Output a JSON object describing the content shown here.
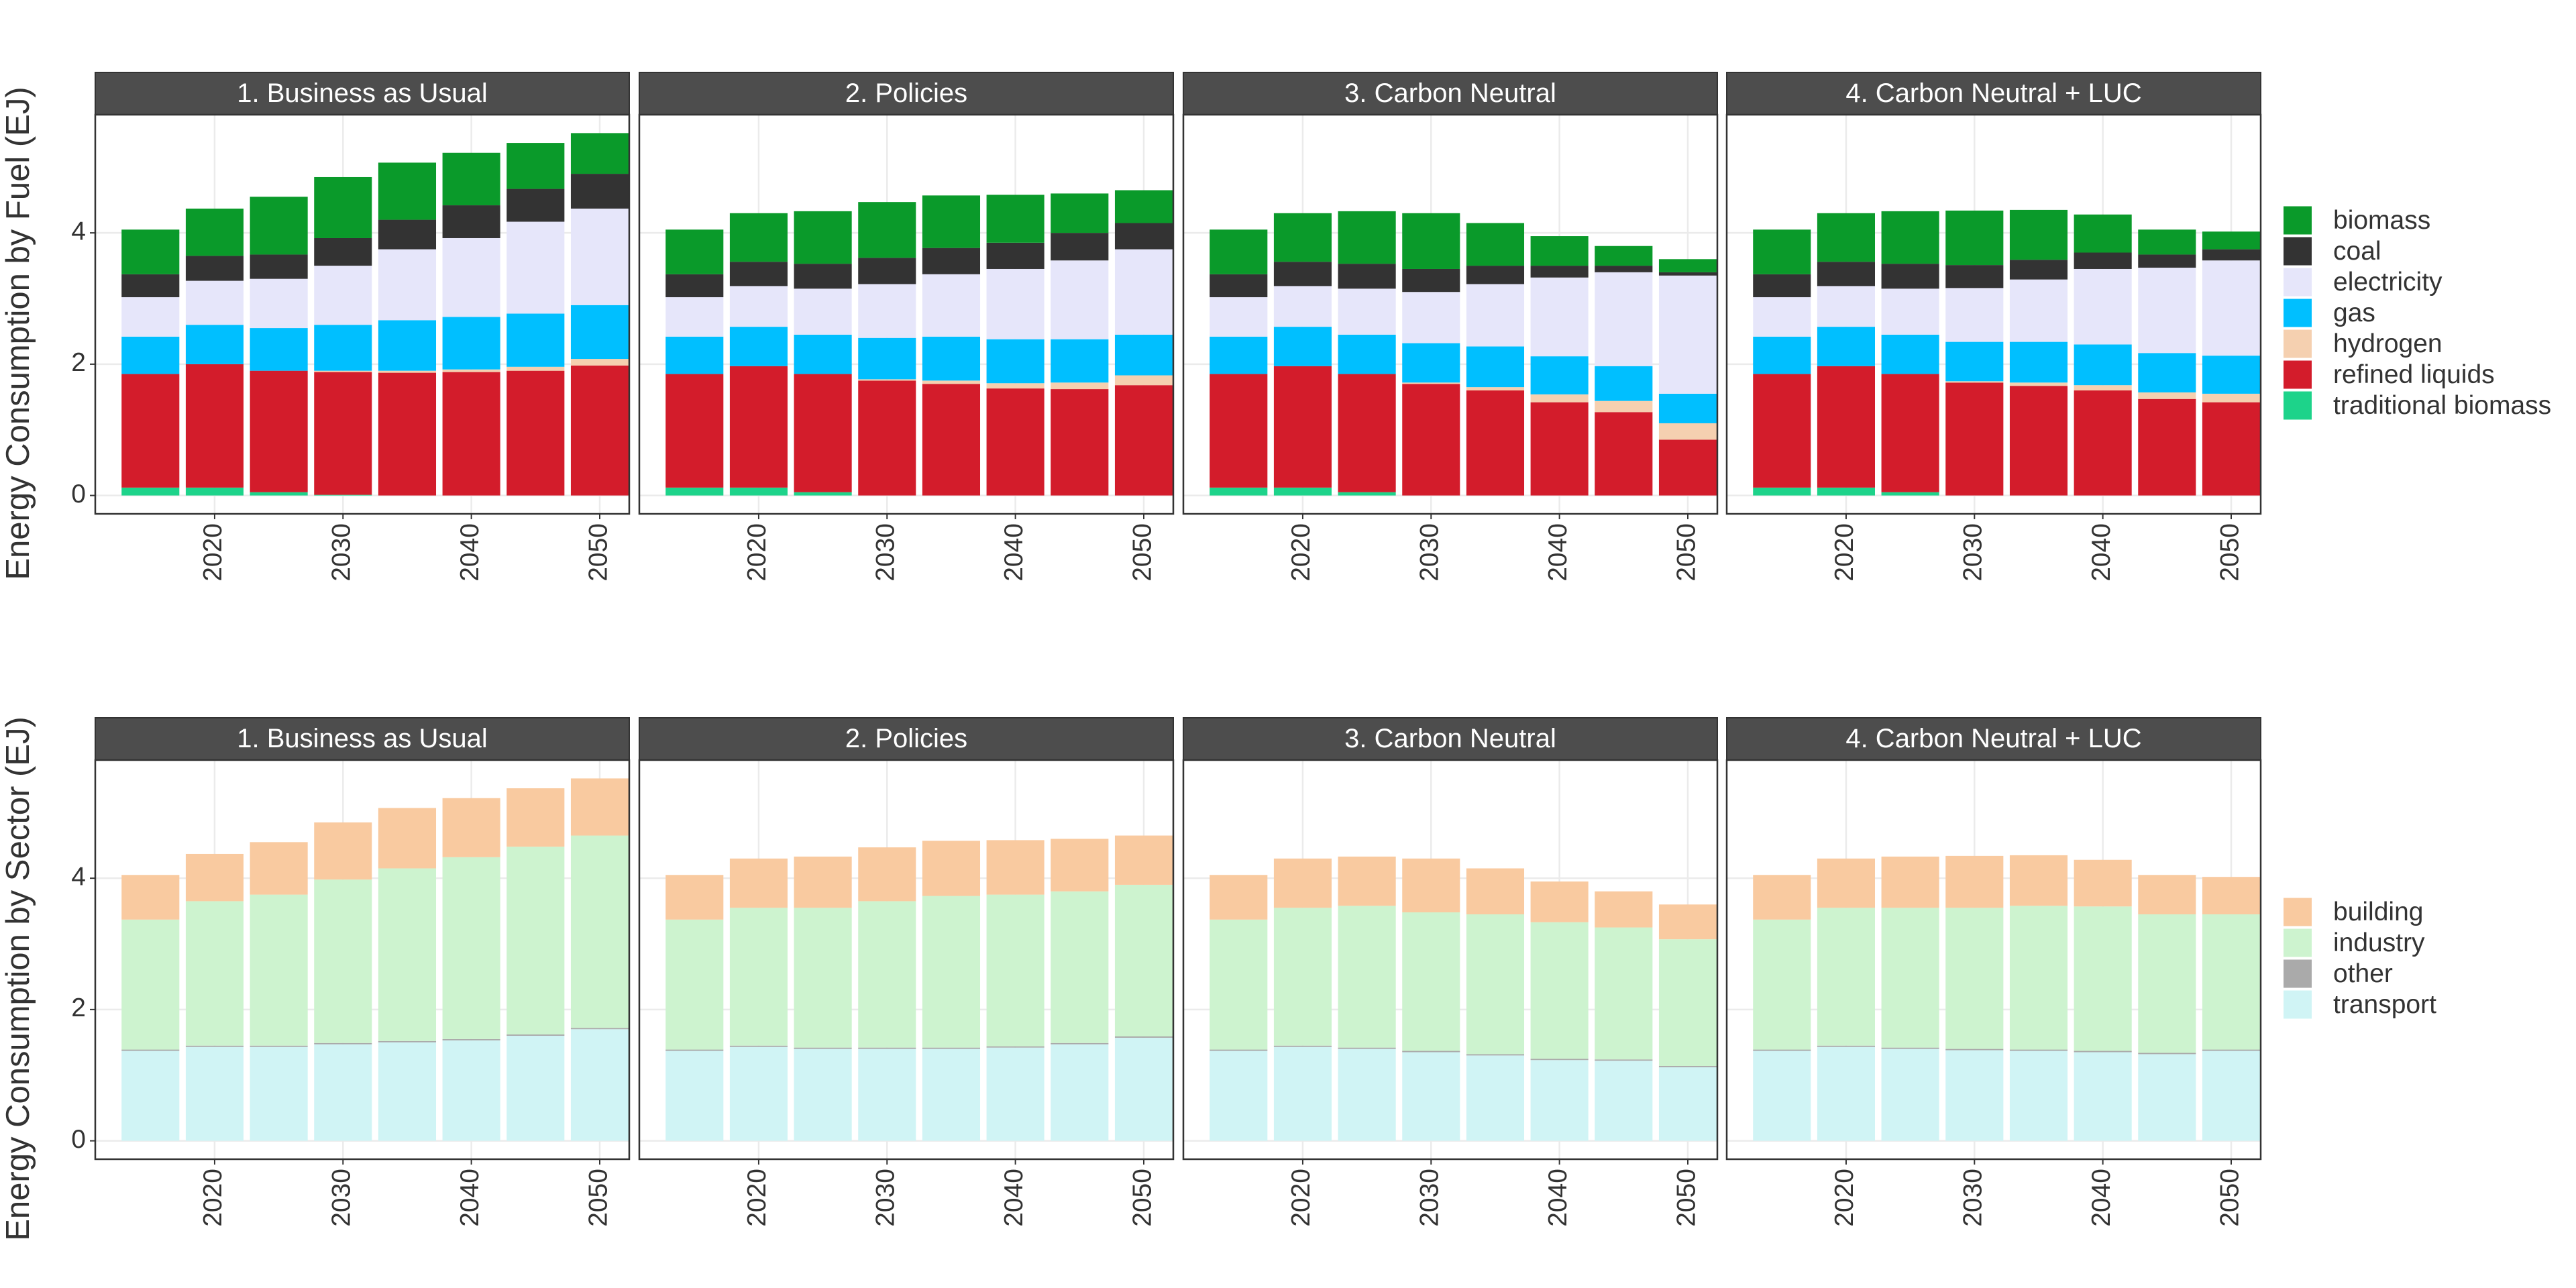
{
  "chart_data": [
    {
      "type": "bar",
      "stacked": true,
      "ylabel": "Energy Consumption by Fuel (EJ)",
      "facets": [
        "1. Business as Usual",
        "2. Policies",
        "3. Carbon Neutral",
        "4. Carbon Neutral + LUC"
      ],
      "x": [
        2015,
        2020,
        2025,
        2030,
        2035,
        2040,
        2045,
        2050
      ],
      "xlim": [
        2010.7,
        2052.3
      ],
      "xticks": [
        2020,
        2030,
        2040,
        2050
      ],
      "ylim": [
        -0.28,
        5.8
      ],
      "yticks": [
        0,
        2,
        4
      ],
      "grid": true,
      "legend": "right",
      "series": [
        {
          "name": "biomass",
          "color": "#0a9a2a",
          "values": [
            [
              0.68,
              0.72,
              0.88,
              0.93,
              0.87,
              0.8,
              0.7,
              0.62
            ],
            [
              0.68,
              0.74,
              0.8,
              0.85,
              0.8,
              0.73,
              0.6,
              0.5
            ],
            [
              0.68,
              0.74,
              0.8,
              0.85,
              0.65,
              0.45,
              0.3,
              0.2
            ],
            [
              0.68,
              0.74,
              0.8,
              0.83,
              0.76,
              0.58,
              0.38,
              0.27
            ]
          ]
        },
        {
          "name": "coal",
          "color": "#333333",
          "values": [
            [
              0.35,
              0.38,
              0.37,
              0.42,
              0.45,
              0.5,
              0.5,
              0.53
            ],
            [
              0.35,
              0.37,
              0.38,
              0.4,
              0.4,
              0.4,
              0.42,
              0.4
            ],
            [
              0.35,
              0.37,
              0.38,
              0.35,
              0.28,
              0.18,
              0.1,
              0.05
            ],
            [
              0.35,
              0.37,
              0.38,
              0.35,
              0.3,
              0.25,
              0.2,
              0.17
            ]
          ]
        },
        {
          "name": "electricity",
          "color": "#e6e6fa",
          "values": [
            [
              0.6,
              0.67,
              0.75,
              0.9,
              1.08,
              1.2,
              1.4,
              1.47
            ],
            [
              0.6,
              0.62,
              0.7,
              0.82,
              0.95,
              1.07,
              1.2,
              1.3
            ],
            [
              0.6,
              0.62,
              0.7,
              0.78,
              0.95,
              1.2,
              1.43,
              1.8
            ],
            [
              0.6,
              0.62,
              0.7,
              0.82,
              0.95,
              1.15,
              1.3,
              1.45
            ]
          ]
        },
        {
          "name": "gas",
          "color": "#00bfff",
          "values": [
            [
              0.57,
              0.6,
              0.65,
              0.7,
              0.77,
              0.8,
              0.81,
              0.82
            ],
            [
              0.57,
              0.6,
              0.6,
              0.63,
              0.67,
              0.67,
              0.66,
              0.62
            ],
            [
              0.57,
              0.6,
              0.6,
              0.6,
              0.62,
              0.58,
              0.53,
              0.45
            ],
            [
              0.57,
              0.6,
              0.6,
              0.6,
              0.62,
              0.62,
              0.6,
              0.58
            ]
          ]
        },
        {
          "name": "hydrogen",
          "color": "#f5d0b0",
          "values": [
            [
              0,
              0,
              0,
              0.02,
              0.03,
              0.04,
              0.06,
              0.1
            ],
            [
              0,
              0,
              0,
              0.02,
              0.05,
              0.08,
              0.1,
              0.15
            ],
            [
              0,
              0,
              0,
              0.02,
              0.05,
              0.12,
              0.17,
              0.25
            ],
            [
              0,
              0,
              0,
              0.02,
              0.05,
              0.08,
              0.1,
              0.13
            ]
          ]
        },
        {
          "name": "refined liquids",
          "color": "#d31c2b",
          "values": [
            [
              1.73,
              1.88,
              1.85,
              1.87,
              1.87,
              1.88,
              1.9,
              1.98
            ],
            [
              1.73,
              1.85,
              1.8,
              1.75,
              1.7,
              1.63,
              1.62,
              1.68
            ],
            [
              1.73,
              1.85,
              1.8,
              1.7,
              1.6,
              1.42,
              1.27,
              0.85
            ],
            [
              1.73,
              1.85,
              1.8,
              1.72,
              1.67,
              1.6,
              1.47,
              1.42
            ]
          ]
        },
        {
          "name": "traditional biomass",
          "color": "#1dd38a",
          "values": [
            [
              0.12,
              0.12,
              0.05,
              0.01,
              0,
              0,
              0,
              0
            ],
            [
              0.12,
              0.12,
              0.05,
              0,
              0,
              0,
              0,
              0
            ],
            [
              0.12,
              0.12,
              0.05,
              0,
              0,
              0,
              0,
              0
            ],
            [
              0.12,
              0.12,
              0.05,
              0,
              0,
              0,
              0,
              0
            ]
          ]
        }
      ]
    },
    {
      "type": "bar",
      "stacked": true,
      "ylabel": "Energy Consumption by Sector (EJ)",
      "facets": [
        "1. Business as Usual",
        "2. Policies",
        "3. Carbon Neutral",
        "4. Carbon Neutral + LUC"
      ],
      "x": [
        2015,
        2020,
        2025,
        2030,
        2035,
        2040,
        2045,
        2050
      ],
      "xlim": [
        2010.7,
        2052.3
      ],
      "xticks": [
        2020,
        2030,
        2040,
        2050
      ],
      "ylim": [
        -0.28,
        5.8
      ],
      "yticks": [
        0,
        2,
        4
      ],
      "grid": true,
      "legend": "right",
      "series": [
        {
          "name": "building",
          "color": "#f9caa0",
          "values": [
            [
              0.68,
              0.72,
              0.8,
              0.87,
              0.92,
              0.9,
              0.89,
              0.87
            ],
            [
              0.68,
              0.75,
              0.78,
              0.82,
              0.84,
              0.83,
              0.8,
              0.75
            ],
            [
              0.68,
              0.75,
              0.75,
              0.82,
              0.7,
              0.62,
              0.55,
              0.53
            ],
            [
              0.68,
              0.75,
              0.78,
              0.79,
              0.77,
              0.71,
              0.6,
              0.57
            ]
          ]
        },
        {
          "name": "industry",
          "color": "#cdf3cf",
          "values": [
            [
              1.98,
              2.2,
              2.3,
              2.49,
              2.63,
              2.77,
              2.86,
              2.93
            ],
            [
              1.98,
              2.1,
              2.13,
              2.23,
              2.31,
              2.31,
              2.31,
              2.31
            ],
            [
              1.98,
              2.1,
              2.16,
              2.11,
              2.13,
              2.08,
              2.01,
              1.93
            ],
            [
              1.98,
              2.1,
              2.13,
              2.15,
              2.19,
              2.2,
              2.11,
              2.06
            ]
          ]
        },
        {
          "name": "other",
          "color": "#aaaaaa",
          "values": [
            [
              0.02,
              0.02,
              0.02,
              0.02,
              0.02,
              0.02,
              0.02,
              0.02
            ],
            [
              0.02,
              0.02,
              0.02,
              0.02,
              0.02,
              0.02,
              0.02,
              0.02
            ],
            [
              0.02,
              0.02,
              0.02,
              0.02,
              0.02,
              0.02,
              0.02,
              0.02
            ],
            [
              0.02,
              0.02,
              0.02,
              0.02,
              0.02,
              0.02,
              0.02,
              0.02
            ]
          ]
        },
        {
          "name": "transport",
          "color": "#d0f4f5",
          "values": [
            [
              1.37,
              1.43,
              1.43,
              1.47,
              1.5,
              1.53,
              1.6,
              1.7
            ],
            [
              1.37,
              1.43,
              1.4,
              1.4,
              1.4,
              1.42,
              1.47,
              1.57
            ],
            [
              1.37,
              1.43,
              1.4,
              1.35,
              1.3,
              1.23,
              1.22,
              1.12
            ],
            [
              1.37,
              1.43,
              1.4,
              1.38,
              1.37,
              1.35,
              1.32,
              1.37
            ]
          ]
        }
      ]
    }
  ]
}
